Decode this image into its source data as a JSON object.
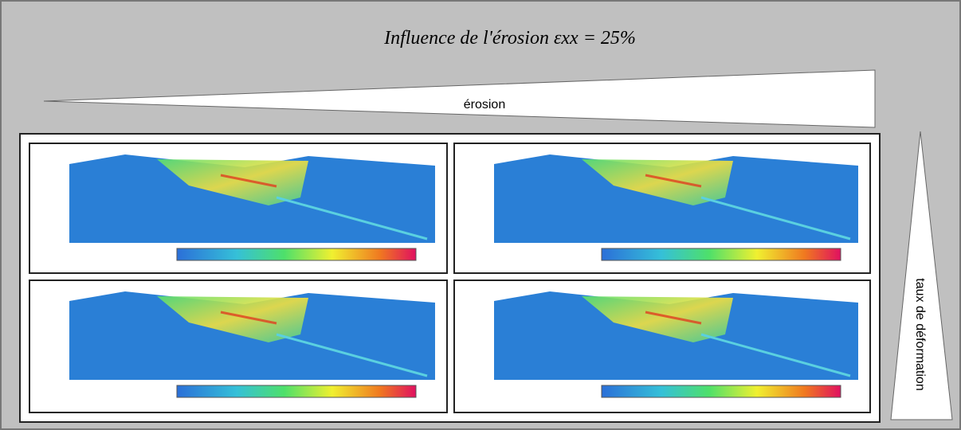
{
  "header": {
    "title": "Influence de l'érosion εxx = 25%"
  },
  "arrows": {
    "horizontal": "érosion",
    "vertical": "taux de déformation"
  }
}
